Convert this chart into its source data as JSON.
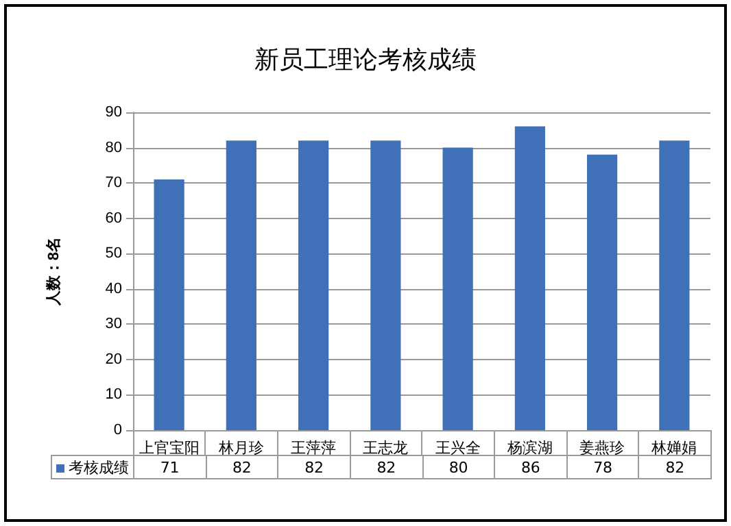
{
  "chart_data": {
    "type": "bar",
    "title": "新员工理论考核成绩",
    "ylabel": "人数：8名",
    "categories": [
      "上官宝阳",
      "林月珍",
      "王萍萍",
      "王志龙",
      "王兴全",
      "杨滨湖",
      "姜燕珍",
      "林婵娟"
    ],
    "series": [
      {
        "name": "考核成绩",
        "color": "#3f70b8",
        "values": [
          71,
          82,
          82,
          82,
          80,
          86,
          78,
          82
        ]
      }
    ],
    "ylim": [
      0,
      90
    ],
    "yticks": [
      0,
      10,
      20,
      30,
      40,
      50,
      60,
      70,
      80,
      90
    ],
    "grid": "y",
    "legend": "bottom",
    "data_labels": true
  }
}
